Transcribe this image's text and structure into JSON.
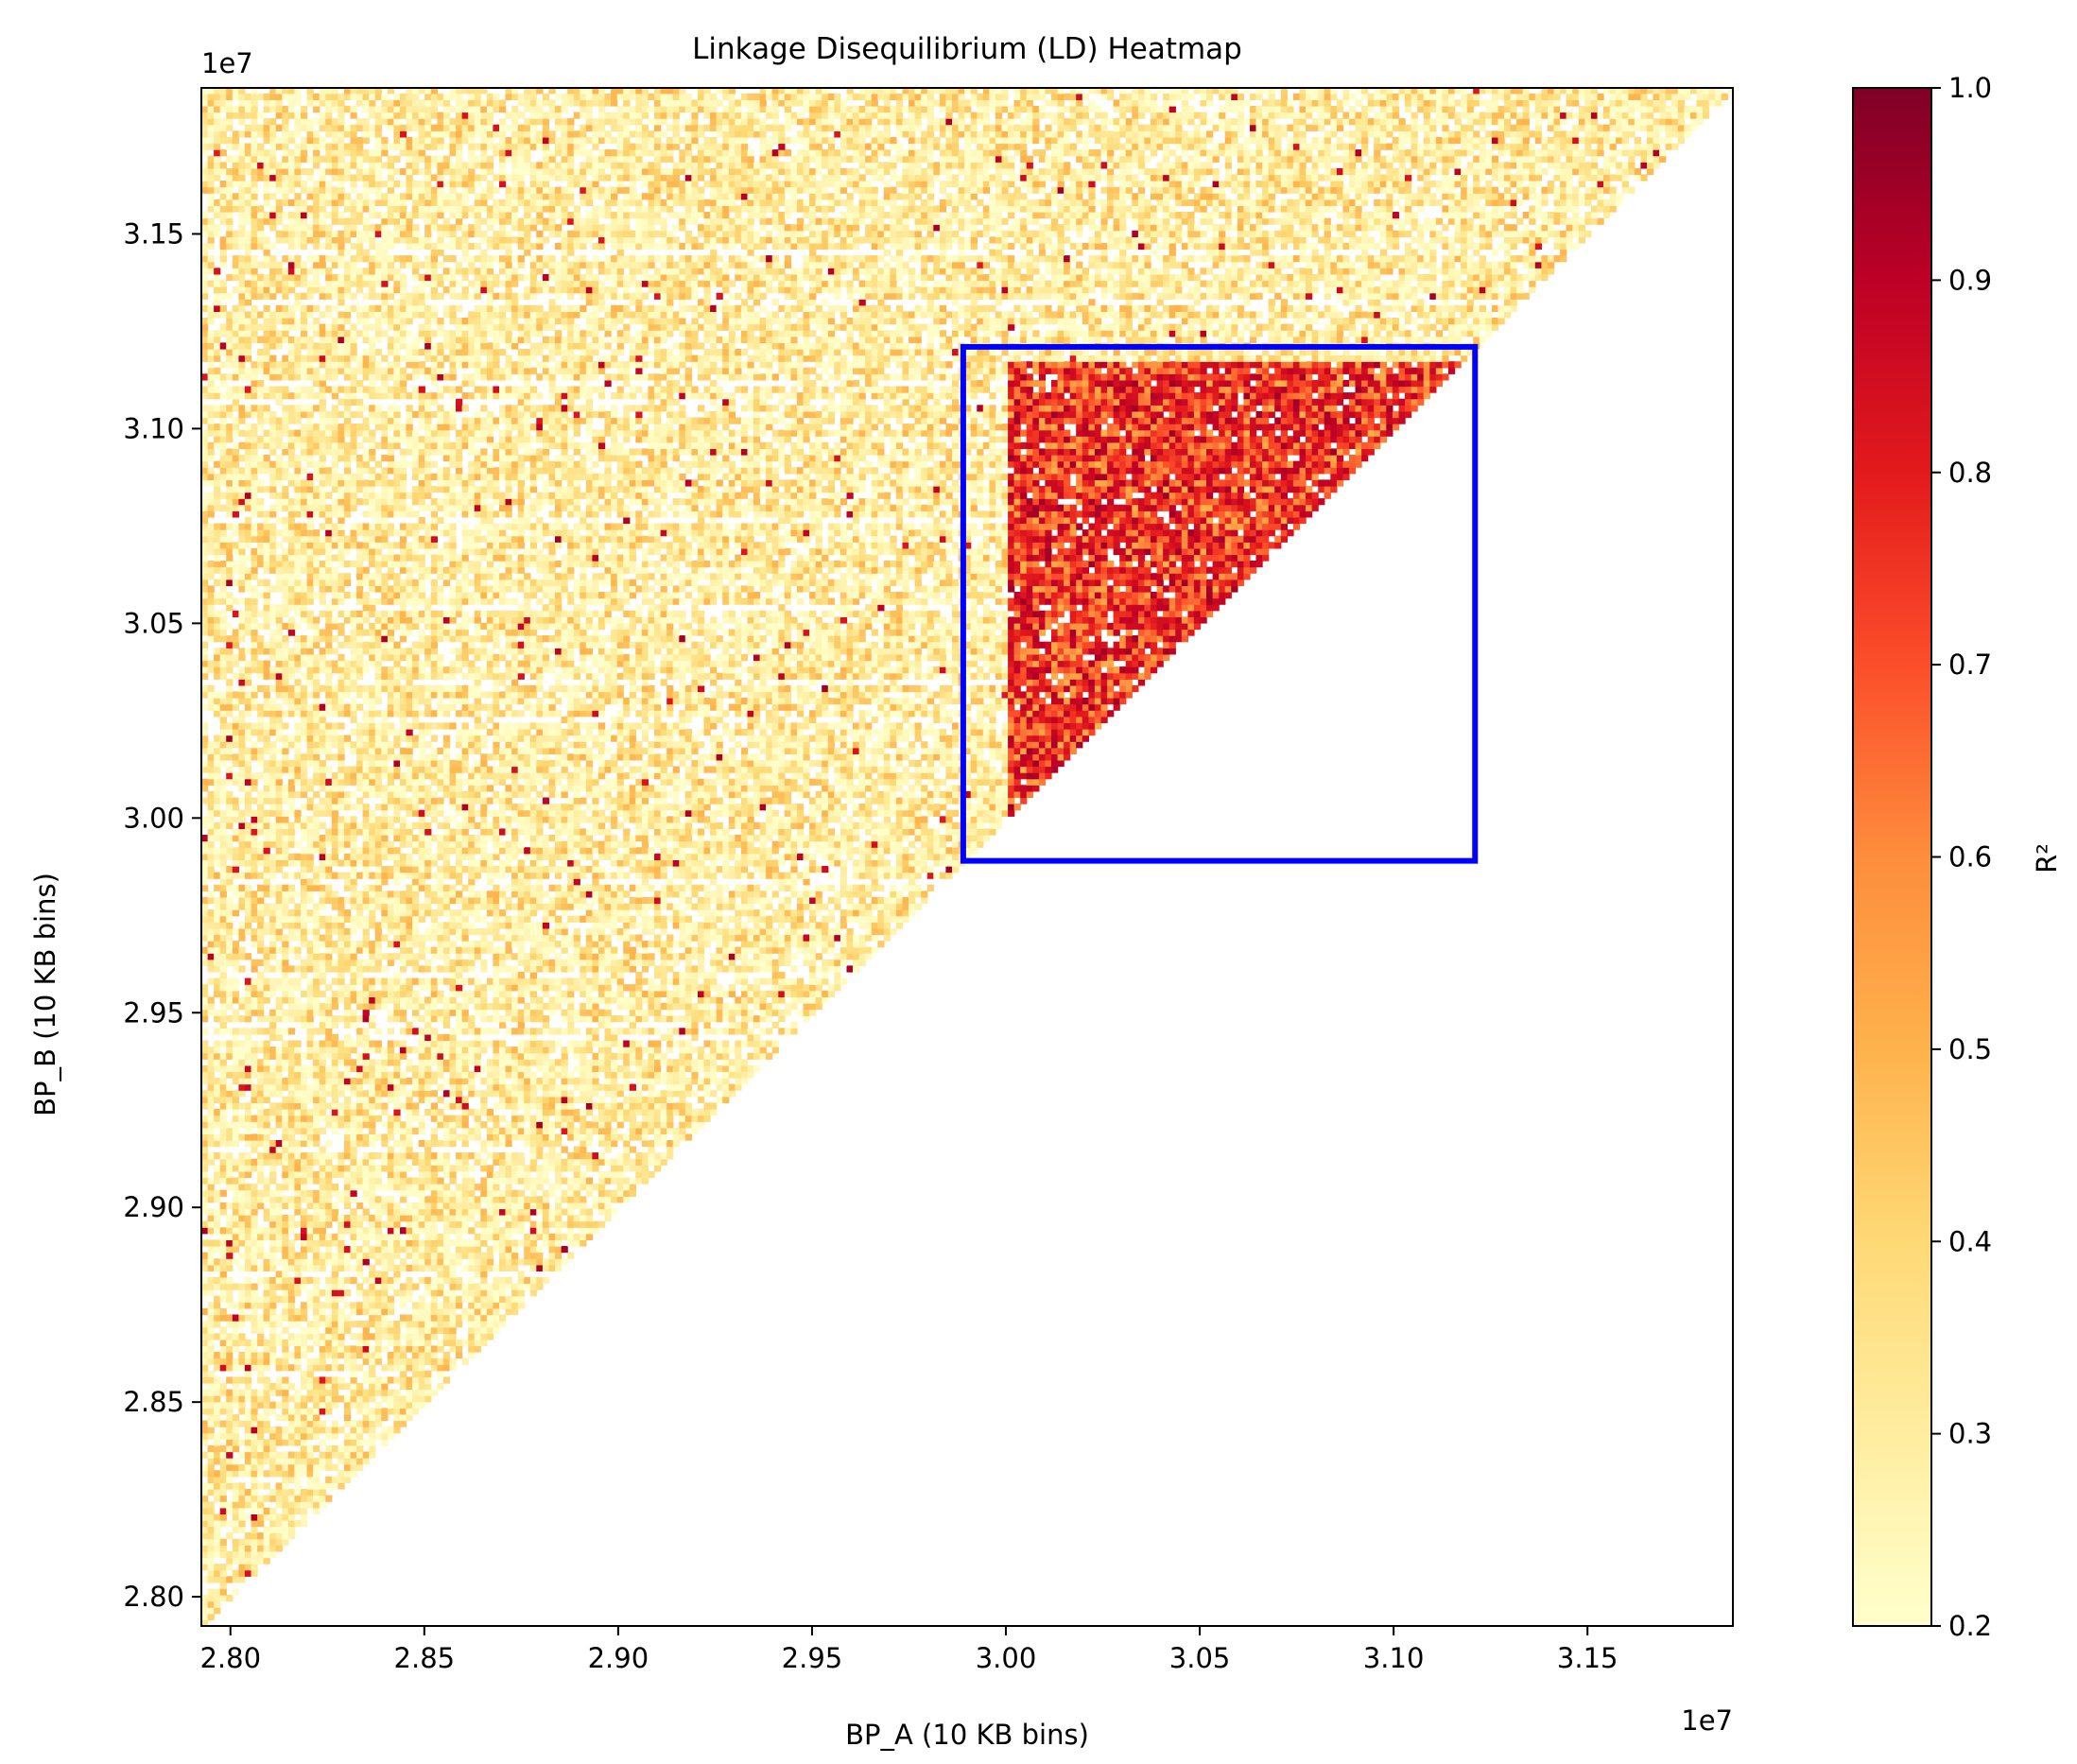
{
  "chart_data": {
    "type": "heatmap",
    "title": "Linkage Disequilibrium (LD) Heatmap",
    "xlabel": "BP_A (10 KB bins)",
    "ylabel": "BP_B (10 KB bins)",
    "x_offset_label": "1e7",
    "y_offset_label": "1e7",
    "xlim": [
      2.7925,
      3.1875
    ],
    "ylim": [
      2.7925,
      3.1875
    ],
    "x_ticks": [
      2.8,
      2.85,
      2.9,
      2.95,
      3.0,
      3.05,
      3.1,
      3.15
    ],
    "x_tick_labels": [
      "2.80",
      "2.85",
      "2.90",
      "2.95",
      "3.00",
      "3.05",
      "3.10",
      "3.15"
    ],
    "y_ticks": [
      2.8,
      2.85,
      2.9,
      2.95,
      3.0,
      3.05,
      3.1,
      3.15
    ],
    "y_tick_labels": [
      "2.80",
      "2.85",
      "2.90",
      "2.95",
      "3.00",
      "3.05",
      "3.10",
      "3.15"
    ],
    "bin_size_1e7": 0.001,
    "lower_triangle_empty": true,
    "background_r2_range": [
      0.2,
      0.5
    ],
    "background_sparse_hotspots_r2": [
      0.8,
      1.0
    ],
    "highlight_block": {
      "x_range": [
        2.999,
        3.117
      ],
      "y_range": [
        2.999,
        3.117
      ],
      "r2_range": [
        0.5,
        0.9
      ]
    },
    "highlight_box": {
      "x_range": [
        2.989,
        3.121
      ],
      "y_range": [
        2.989,
        3.121
      ],
      "color": "#0000ff"
    },
    "colorbar": {
      "label": "R²",
      "range": [
        0.2,
        1.0
      ],
      "ticks": [
        0.2,
        0.3,
        0.4,
        0.5,
        0.6,
        0.7,
        0.8,
        0.9,
        1.0
      ],
      "tick_labels": [
        "0.2",
        "0.3",
        "0.4",
        "0.5",
        "0.6",
        "0.7",
        "0.8",
        "0.9",
        "1.0"
      ],
      "colormap": "YlOrRd",
      "colors": [
        "#ffffcc",
        "#ffeda0",
        "#fed976",
        "#feb24c",
        "#fd8d3c",
        "#fc4e2a",
        "#e31a1c",
        "#bd0026",
        "#800026"
      ]
    }
  }
}
